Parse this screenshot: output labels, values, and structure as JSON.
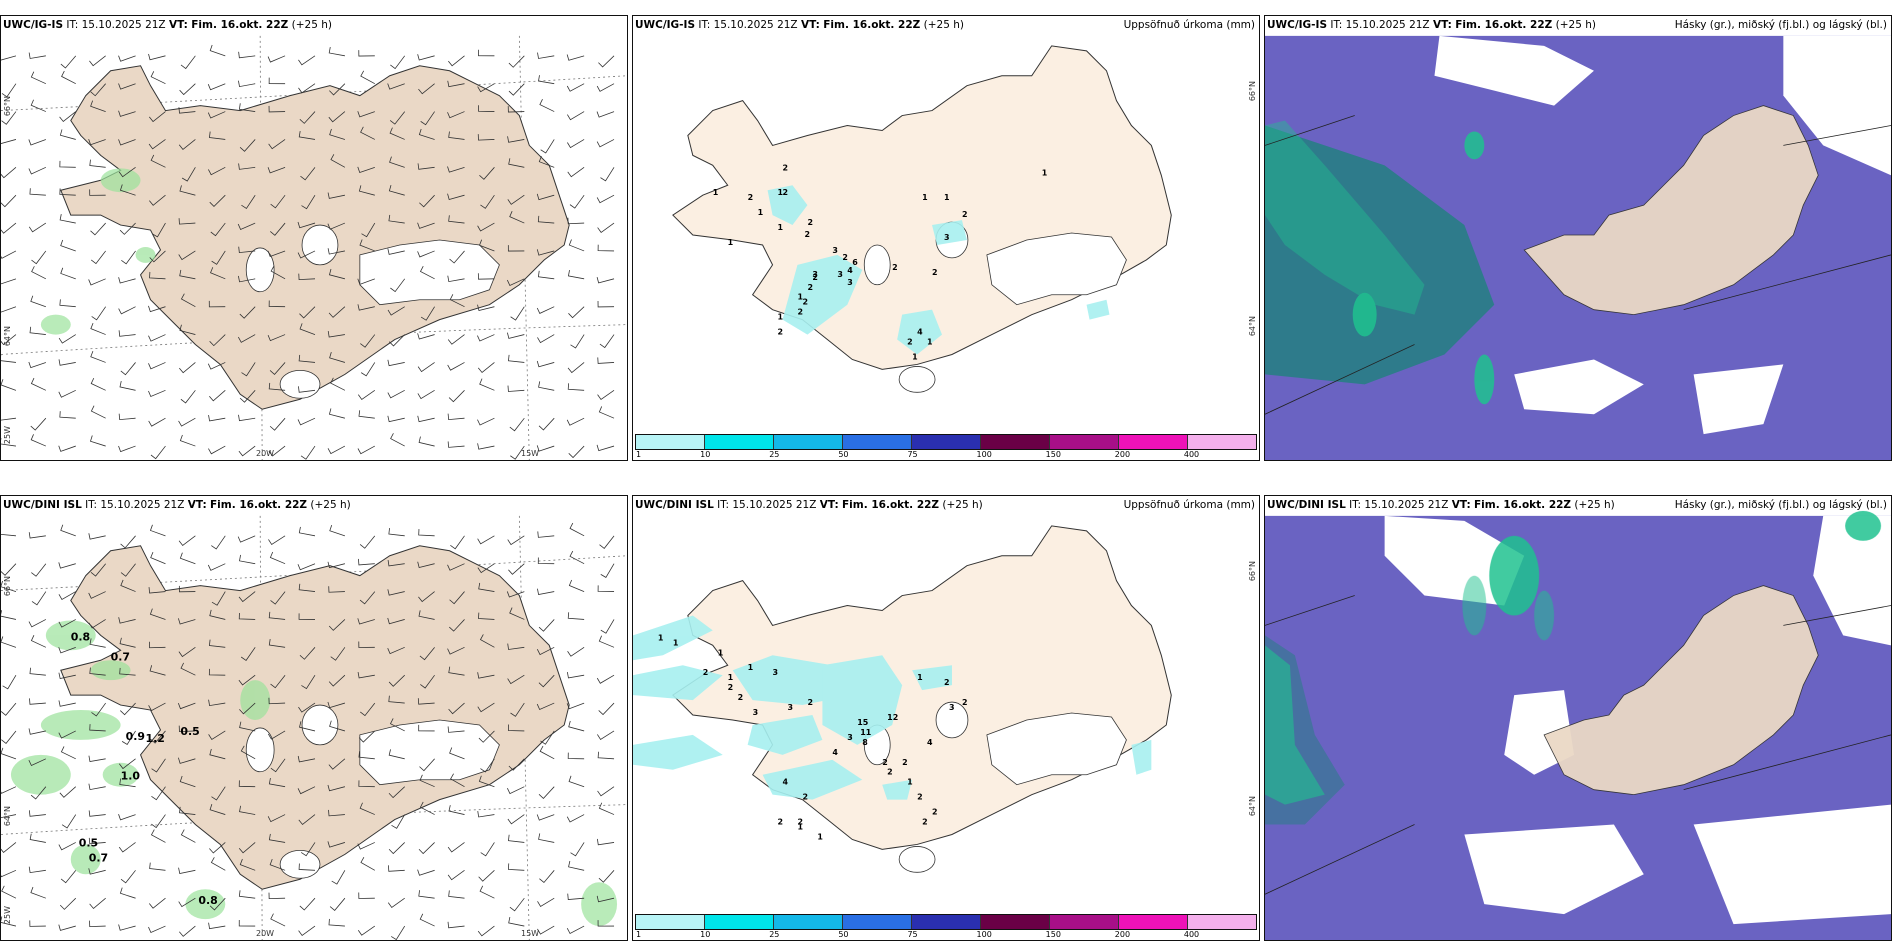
{
  "panels": {
    "top_left": {
      "model": "UWC/IG-IS",
      "it_label": "IT:",
      "it_value": "15.10.2025 21Z",
      "vt_label": "VT:",
      "vt_value": "Fim. 16.okt. 22Z",
      "lead": "(+25 h)",
      "right_title": ""
    },
    "top_mid": {
      "model": "UWC/IG-IS",
      "it_label": "IT:",
      "it_value": "15.10.2025 21Z",
      "vt_label": "VT:",
      "vt_value": "Fim. 16.okt. 22Z",
      "lead": "(+25 h)",
      "right_title": "Uppsöfnuð úrkoma (mm)"
    },
    "top_right": {
      "model": "UWC/IG-IS",
      "it_label": "IT:",
      "it_value": "15.10.2025 21Z",
      "vt_label": "VT:",
      "vt_value": "Fim. 16.okt. 22Z",
      "lead": "(+25 h)",
      "right_title": "Hásky (gr.), miðský (fj.bl.) og lágský (bl.)"
    },
    "bot_left": {
      "model": "UWC/DINI ISL",
      "it_label": "IT:",
      "it_value": "15.10.2025 21Z",
      "vt_label": "VT:",
      "vt_value": "Fim. 16.okt. 22Z",
      "lead": "(+25 h)",
      "right_title": ""
    },
    "bot_mid": {
      "model": "UWC/DINI ISL",
      "it_label": "IT:",
      "it_value": "15.10.2025 21Z",
      "vt_label": "VT:",
      "vt_value": "Fim. 16.okt. 22Z",
      "lead": "(+25 h)",
      "right_title": "Uppsöfnuð úrkoma (mm)"
    },
    "bot_right": {
      "model": "UWC/DINI ISL",
      "it_label": "IT:",
      "it_value": "15.10.2025 21Z",
      "vt_label": "VT:",
      "vt_value": "Fim. 16.okt. 22Z",
      "lead": "(+25 h)",
      "right_title": "Hásky (gr.), miðský (fj.bl.) og lágský (bl.)"
    }
  },
  "map_labels": {
    "lat_66": "66°N",
    "lat_64": "64°N",
    "lon_20": "20W",
    "lon_15": "15W",
    "lon_25": "25W"
  },
  "precip_colorbar": {
    "ticks": [
      "1",
      "10",
      "25",
      "50",
      "75",
      "100",
      "150",
      "200",
      "400"
    ],
    "colors": [
      "#b8f4f6",
      "#00e5ea",
      "#14b8e8",
      "#2a6fe4",
      "#2a2fb0",
      "#6a0046",
      "#a80f88",
      "#ee12b8",
      "#f4b0ec"
    ]
  },
  "precip_labels_top": [
    "2",
    "1",
    "1",
    "2",
    "1",
    "2",
    "1",
    "1",
    "2",
    "2",
    "3",
    "2",
    "6",
    "3",
    "2",
    "4",
    "3",
    "3",
    "2",
    "2",
    "1",
    "1",
    "2",
    "2",
    "1",
    "1",
    "2",
    "3",
    "2",
    "2",
    "4",
    "1",
    "1",
    "2",
    "1"
  ],
  "precip_labels_bot": [
    "1",
    "1",
    "1",
    "2",
    "1",
    "1",
    "3",
    "3",
    "3",
    "2",
    "2",
    "2",
    "15",
    "12",
    "11",
    "8",
    "3",
    "4",
    "2",
    "4",
    "1",
    "1",
    "2",
    "2",
    "1",
    "2",
    "2",
    "3",
    "4",
    "2",
    "2",
    "1",
    "2",
    "2",
    "2",
    "2"
  ],
  "wind_labels_bot": [
    "0.8",
    "0.7",
    "0.5",
    "0.9",
    "1.2",
    "1.0",
    "0.5",
    "0.7",
    "0.8"
  ],
  "colors": {
    "land": "#fbefe2",
    "land_left": "#ead8c6",
    "cloud_high": "#6a63c2",
    "cloud_mid": "#1fc28f",
    "cloud_low": "#2e7b8b",
    "precip_light": "#a7f0f0",
    "wind_green": "#9be29b"
  }
}
